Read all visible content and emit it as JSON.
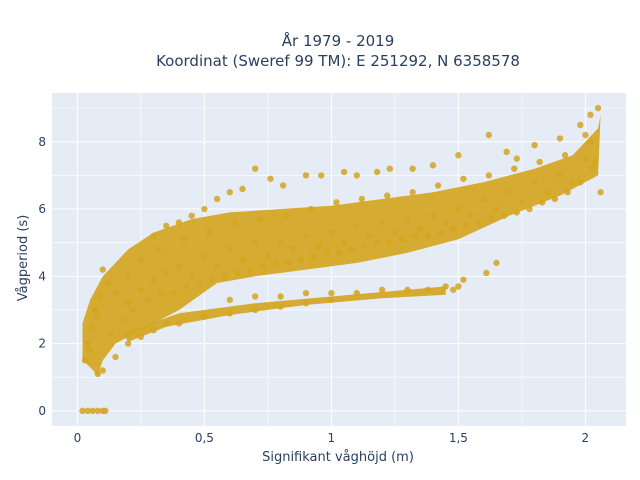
{
  "chart_data": {
    "type": "scatter",
    "title_line1": "År 1979 - 2019",
    "title_line2": "Koordinat (Sweref 99 TM): E 251292, N 6358578",
    "xlabel": "Signifikant våghöjd (m)",
    "ylabel": "Vågperiod (s)",
    "xlim": [
      -0.1,
      2.16
    ],
    "ylim": [
      -0.45,
      9.45
    ],
    "xticks": [
      0,
      0.5,
      1,
      1.5,
      2
    ],
    "xtick_labels": [
      "0",
      "0,5",
      "1",
      "1,5",
      "2"
    ],
    "yticks": [
      0,
      2,
      4,
      6,
      8
    ],
    "ytick_labels": [
      "0",
      "2",
      "4",
      "6",
      "8"
    ],
    "grid": true,
    "marker_color": "#D4A520",
    "background_color": "#E5ECF6",
    "series": [
      {
        "points": [
          [
            0.02,
            0.0
          ],
          [
            0.04,
            0.0
          ],
          [
            0.06,
            0.0
          ],
          [
            0.08,
            0.0
          ],
          [
            0.1,
            0.0
          ],
          [
            0.11,
            0.0
          ],
          [
            0.03,
            1.5
          ],
          [
            0.05,
            1.8
          ],
          [
            0.08,
            1.1
          ],
          [
            0.1,
            1.2
          ],
          [
            0.06,
            2.5
          ],
          [
            0.04,
            2.0
          ],
          [
            0.07,
            3.0
          ],
          [
            0.09,
            3.4
          ],
          [
            0.12,
            3.8
          ],
          [
            0.1,
            4.2
          ],
          [
            0.15,
            1.6
          ],
          [
            0.2,
            2.0
          ],
          [
            0.25,
            2.2
          ],
          [
            0.3,
            2.4
          ],
          [
            0.35,
            2.6
          ],
          [
            0.4,
            2.6
          ],
          [
            0.5,
            2.8
          ],
          [
            0.6,
            2.9
          ],
          [
            0.7,
            3.0
          ],
          [
            0.8,
            3.1
          ],
          [
            0.9,
            3.2
          ],
          [
            1.0,
            3.3
          ],
          [
            0.15,
            3.5
          ],
          [
            0.2,
            4.0
          ],
          [
            0.25,
            4.5
          ],
          [
            0.3,
            5.2
          ],
          [
            0.35,
            5.5
          ],
          [
            0.4,
            5.6
          ],
          [
            0.45,
            5.8
          ],
          [
            0.5,
            6.0
          ],
          [
            0.55,
            6.3
          ],
          [
            0.6,
            6.5
          ],
          [
            0.65,
            6.6
          ],
          [
            0.7,
            7.2
          ],
          [
            0.76,
            6.9
          ],
          [
            0.81,
            6.7
          ],
          [
            0.9,
            7.0
          ],
          [
            0.96,
            7.0
          ],
          [
            1.05,
            7.1
          ],
          [
            1.1,
            7.0
          ],
          [
            1.18,
            7.1
          ],
          [
            1.23,
            7.2
          ],
          [
            1.32,
            7.2
          ],
          [
            1.4,
            7.3
          ],
          [
            1.5,
            7.6
          ],
          [
            1.62,
            8.2
          ],
          [
            1.69,
            7.7
          ],
          [
            1.73,
            7.5
          ],
          [
            1.8,
            7.9
          ],
          [
            1.9,
            8.1
          ],
          [
            1.98,
            8.5
          ],
          [
            2.02,
            8.8
          ],
          [
            2.05,
            9.0
          ],
          [
            2.04,
            7.4
          ],
          [
            2.06,
            6.5
          ],
          [
            0.2,
            3.2
          ],
          [
            0.25,
            3.6
          ],
          [
            0.3,
            3.9
          ],
          [
            0.35,
            4.1
          ],
          [
            0.4,
            4.3
          ],
          [
            0.45,
            4.0
          ],
          [
            0.5,
            4.6
          ],
          [
            0.55,
            4.3
          ],
          [
            0.6,
            4.8
          ],
          [
            0.65,
            4.5
          ],
          [
            0.7,
            5.0
          ],
          [
            0.75,
            4.6
          ],
          [
            0.8,
            5.0
          ],
          [
            0.85,
            4.8
          ],
          [
            0.9,
            5.2
          ],
          [
            0.95,
            4.9
          ],
          [
            1.0,
            5.3
          ],
          [
            1.05,
            5.0
          ],
          [
            1.1,
            5.5
          ],
          [
            1.15,
            5.2
          ],
          [
            1.2,
            5.6
          ],
          [
            1.25,
            5.3
          ],
          [
            1.3,
            5.7
          ],
          [
            1.35,
            5.4
          ],
          [
            1.4,
            5.8
          ],
          [
            1.45,
            5.6
          ],
          [
            1.5,
            6.0
          ],
          [
            1.55,
            5.8
          ],
          [
            1.6,
            6.3
          ],
          [
            1.65,
            6.0
          ],
          [
            1.7,
            6.5
          ],
          [
            1.75,
            6.2
          ],
          [
            1.8,
            6.8
          ],
          [
            1.85,
            6.5
          ],
          [
            1.9,
            7.0
          ],
          [
            1.95,
            6.8
          ],
          [
            2.0,
            7.5
          ],
          [
            2.02,
            8.0
          ],
          [
            0.6,
            3.3
          ],
          [
            0.7,
            3.4
          ],
          [
            0.8,
            3.4
          ],
          [
            0.9,
            3.5
          ],
          [
            1.0,
            3.5
          ],
          [
            1.1,
            3.5
          ],
          [
            1.2,
            3.6
          ],
          [
            1.3,
            3.6
          ],
          [
            1.38,
            3.6
          ],
          [
            1.45,
            3.7
          ],
          [
            1.48,
            3.6
          ],
          [
            1.5,
            3.7
          ],
          [
            1.52,
            3.9
          ],
          [
            1.61,
            4.1
          ],
          [
            1.65,
            4.4
          ],
          [
            0.08,
            2.8
          ],
          [
            0.13,
            2.3
          ],
          [
            0.18,
            2.7
          ],
          [
            0.22,
            3.0
          ],
          [
            0.28,
            3.3
          ],
          [
            0.33,
            3.5
          ],
          [
            0.38,
            3.5
          ],
          [
            0.43,
            3.7
          ],
          [
            0.48,
            3.8
          ],
          [
            0.53,
            3.9
          ],
          [
            0.58,
            4.0
          ],
          [
            0.63,
            4.1
          ],
          [
            0.68,
            4.2
          ],
          [
            0.73,
            4.3
          ],
          [
            0.78,
            4.4
          ],
          [
            0.83,
            4.4
          ],
          [
            0.88,
            4.5
          ],
          [
            0.93,
            4.6
          ],
          [
            0.98,
            4.7
          ],
          [
            1.03,
            4.7
          ],
          [
            1.08,
            4.8
          ],
          [
            1.13,
            4.9
          ],
          [
            1.18,
            5.0
          ],
          [
            1.23,
            5.0
          ],
          [
            1.28,
            5.1
          ],
          [
            1.33,
            5.2
          ],
          [
            1.38,
            5.2
          ],
          [
            1.43,
            5.3
          ],
          [
            1.48,
            5.4
          ],
          [
            1.53,
            5.5
          ],
          [
            1.58,
            5.6
          ],
          [
            1.63,
            5.7
          ],
          [
            1.68,
            5.8
          ],
          [
            1.73,
            5.9
          ],
          [
            1.78,
            6.0
          ],
          [
            1.83,
            6.2
          ],
          [
            1.88,
            6.3
          ],
          [
            1.93,
            6.5
          ],
          [
            1.98,
            6.8
          ],
          [
            2.03,
            7.2
          ],
          [
            0.32,
            4.8
          ],
          [
            0.42,
            5.1
          ],
          [
            0.52,
            5.3
          ],
          [
            0.62,
            5.6
          ],
          [
            0.72,
            5.7
          ],
          [
            0.82,
            5.8
          ],
          [
            0.92,
            6.0
          ],
          [
            1.02,
            6.2
          ],
          [
            1.12,
            6.3
          ],
          [
            1.22,
            6.4
          ],
          [
            1.32,
            6.5
          ],
          [
            1.42,
            6.7
          ],
          [
            1.52,
            6.9
          ],
          [
            1.62,
            7.0
          ],
          [
            1.72,
            7.2
          ],
          [
            1.82,
            7.4
          ],
          [
            1.92,
            7.6
          ],
          [
            2.0,
            8.2
          ]
        ]
      }
    ]
  }
}
